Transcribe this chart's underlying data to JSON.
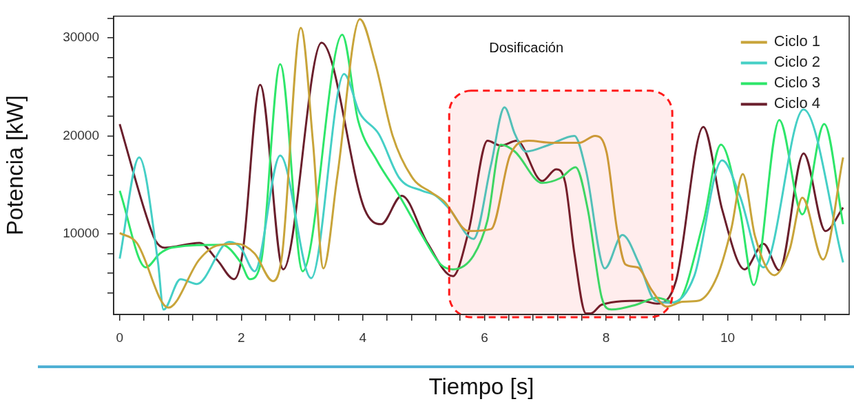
{
  "chart_data": {
    "type": "line",
    "xlabel": "Tiempo [s]",
    "ylabel": "Potencia [kW]",
    "xlim": [
      -0.1,
      12
    ],
    "ylim": [
      1800,
      32200
    ],
    "xticks": [
      0,
      {
        "value": 0.4,
        "label": null
      },
      {
        "value": 0.8,
        "label": null
      },
      {
        "value": 1.2,
        "label": null
      },
      {
        "value": 1.6,
        "label": null
      },
      2,
      {
        "value": 2.4,
        "label": null
      },
      {
        "value": 2.8,
        "label": null
      },
      {
        "value": 3.2,
        "label": null
      },
      {
        "value": 3.6,
        "label": null
      },
      4,
      {
        "value": 4.4,
        "label": null
      },
      {
        "value": 4.8,
        "label": null
      },
      {
        "value": 5.2,
        "label": null
      },
      {
        "value": 5.6,
        "label": null
      },
      6,
      {
        "value": 6.4,
        "label": null
      },
      {
        "value": 6.8,
        "label": null
      },
      {
        "value": 7.2,
        "label": null
      },
      {
        "value": 7.6,
        "label": null
      },
      8,
      {
        "value": 8.4,
        "label": null
      },
      {
        "value": 8.8,
        "label": null
      },
      {
        "value": 9.2,
        "label": null
      },
      {
        "value": 9.6,
        "label": null
      },
      10,
      {
        "value": 10.4,
        "label": null
      },
      {
        "value": 10.8,
        "label": null
      },
      {
        "value": 11.2,
        "label": null
      },
      {
        "value": 11.6,
        "label": null
      }
    ],
    "yticks": [
      {
        "value": 4000,
        "label": null
      },
      {
        "value": 6000,
        "label": null
      },
      {
        "value": 8000,
        "label": null
      },
      10000,
      {
        "value": 12000,
        "label": null
      },
      {
        "value": 14000,
        "label": null
      },
      {
        "value": 16000,
        "label": null
      },
      {
        "value": 18000,
        "label": null
      },
      20000,
      {
        "value": 22000,
        "label": null
      },
      {
        "value": 24000,
        "label": null
      },
      {
        "value": 26000,
        "label": null
      },
      {
        "value": 28000,
        "label": null
      },
      30000,
      {
        "value": 32000,
        "label": null
      }
    ],
    "grid": false,
    "legend": "top right",
    "marker": "none",
    "line_style": "solid",
    "bands": [
      {
        "axis": "x",
        "from": 5.42,
        "to": 9.09,
        "label": "Dosificación",
        "color": "#ff1a1a"
      }
    ],
    "series": [
      {
        "name": "Ciclo 1",
        "color": "#c8a43a",
        "x": [
          0,
          0.28,
          0.8,
          1.31,
          1.59,
          1.93,
          2.22,
          2.52,
          2.67,
          2.98,
          3.18,
          3.35,
          3.58,
          3.95,
          4.2,
          4.49,
          4.83,
          5.11,
          5.34,
          5.74,
          6.11,
          6.42,
          6.73,
          7.1,
          7.56,
          7.82,
          8.01,
          8.18,
          8.32,
          8.52,
          8.75,
          9.0,
          9.26,
          9.52,
          9.83,
          10.06,
          10.25,
          10.45,
          10.77,
          11.02,
          11.23,
          11.57,
          11.9
        ],
        "values": [
          10100,
          9100,
          2500,
          7400,
          8800,
          9000,
          8000,
          5200,
          7800,
          31000,
          19300,
          6500,
          15900,
          31900,
          27500,
          20000,
          15600,
          14300,
          13300,
          10300,
          10500,
          18000,
          19500,
          19300,
          19300,
          20000,
          18300,
          10500,
          6900,
          6600,
          4300,
          2600,
          3100,
          3200,
          5700,
          10500,
          16100,
          9800,
          5800,
          8400,
          13700,
          7400,
          17800
        ]
      },
      {
        "name": "Ciclo 2",
        "color": "#45cfc6",
        "x": [
          0,
          0.32,
          0.63,
          0.72,
          1.0,
          1.27,
          1.8,
          1.99,
          2.22,
          2.64,
          3.15,
          3.69,
          3.95,
          4.26,
          4.6,
          4.98,
          5.2,
          5.43,
          5.82,
          6.11,
          6.33,
          6.5,
          6.68,
          7.07,
          7.48,
          7.67,
          7.98,
          8.27,
          8.55,
          8.81,
          9.07,
          9.45,
          9.91,
          10.2,
          10.59,
          11.25,
          11.9
        ],
        "values": [
          7500,
          17800,
          7100,
          2300,
          5400,
          4900,
          9200,
          8600,
          6200,
          18000,
          5500,
          26300,
          22300,
          20200,
          15700,
          14400,
          13900,
          12500,
          9500,
          17100,
          22900,
          20200,
          18400,
          19100,
          20000,
          16500,
          6500,
          9900,
          6900,
          3200,
          3000,
          5700,
          17500,
          13900,
          6600,
          22700,
          7100
        ]
      },
      {
        "name": "Ciclo 3",
        "color": "#2ee66a",
        "x": [
          0,
          0.43,
          0.66,
          0.85,
          1.68,
          1.99,
          2.14,
          2.33,
          2.64,
          3.01,
          3.66,
          3.92,
          4.23,
          4.6,
          4.98,
          5.28,
          5.48,
          5.82,
          6.05,
          6.27,
          6.5,
          6.95,
          7.25,
          7.5,
          7.7,
          7.93,
          8.09,
          8.5,
          8.84,
          9.15,
          9.6,
          9.89,
          10.2,
          10.43,
          10.85,
          11.23,
          11.59,
          11.9
        ],
        "values": [
          14400,
          6600,
          8000,
          8600,
          8900,
          7100,
          5400,
          7300,
          27300,
          6200,
          30300,
          21600,
          17500,
          13900,
          9800,
          6900,
          6400,
          7800,
          11400,
          19100,
          18400,
          15200,
          15700,
          16800,
          12500,
          3500,
          2300,
          2800,
          3500,
          3000,
          11200,
          19100,
          12500,
          4800,
          21600,
          12000,
          21200,
          11000
        ]
      },
      {
        "name": "Ciclo 4",
        "color": "#6a1f2c",
        "x": [
          0,
          0.43,
          0.59,
          0.74,
          1.31,
          1.61,
          1.88,
          2.02,
          2.31,
          2.69,
          3.32,
          4.03,
          4.3,
          4.64,
          5.06,
          5.48,
          5.74,
          6.05,
          6.27,
          6.53,
          6.95,
          7.18,
          7.33,
          7.48,
          7.67,
          7.75,
          7.93,
          8.58,
          8.84,
          9.15,
          9.6,
          9.91,
          10.28,
          10.59,
          10.85,
          11.25,
          11.61,
          11.9
        ],
        "values": [
          21200,
          12000,
          9300,
          8600,
          9100,
          7300,
          5400,
          8000,
          25200,
          6400,
          29500,
          12500,
          11000,
          13900,
          9100,
          5700,
          10300,
          19500,
          19000,
          19500,
          15400,
          16600,
          15200,
          8000,
          1900,
          1900,
          2800,
          3200,
          2900,
          5200,
          20900,
          12500,
          6400,
          9000,
          6300,
          18200,
          10300,
          12700
        ]
      }
    ]
  }
}
